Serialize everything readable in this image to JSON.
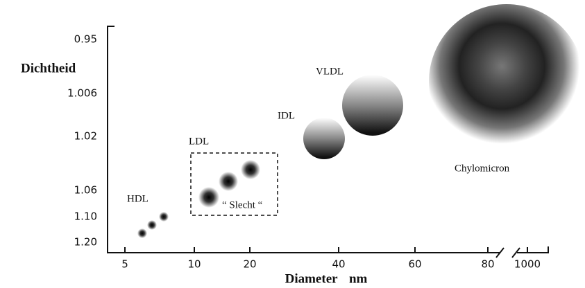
{
  "y_axis": {
    "label": "Dichtheid",
    "ticks": [
      "0.95",
      "1.006",
      "1.02",
      "1.06",
      "1.10",
      "1.20"
    ]
  },
  "x_axis": {
    "label": "Diameter nm",
    "ticks": [
      "5",
      "10",
      "20",
      "40",
      "60",
      "80",
      "1000"
    ]
  },
  "particles": [
    {
      "label": "HDL"
    },
    {
      "label": "LDL"
    },
    {
      "label": "IDL"
    },
    {
      "label": "VLDL"
    },
    {
      "label": "Chylomicron"
    }
  ],
  "annotation": "“ Slecht “"
}
